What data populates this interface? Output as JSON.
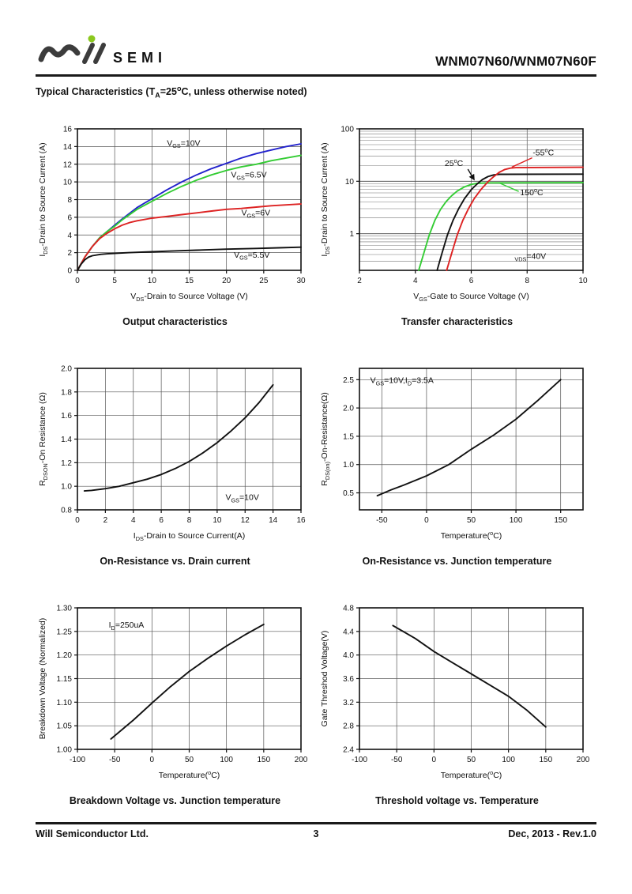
{
  "header": {
    "logo_text": "SEMI",
    "part_number": "WNM07N60/WNM07N60F",
    "logo_color": "#3c3c3c",
    "logo_dot_color": "#8bc81e"
  },
  "section_title": "Typical Characteristics (T_{A}=25^{o}C, unless otherwise noted)",
  "footer": {
    "company": "Will Semiconductor Ltd.",
    "page": "3",
    "revision": "Dec, 2013 - Rev.1.0"
  },
  "chart_data": [
    {
      "type": "line",
      "caption": "Output characteristics",
      "xlabel": "V_{DS}-Drain to Source Voltage (V)",
      "ylabel": "I_{DS}-Drain to Source Current (A)",
      "xlim": [
        0,
        30
      ],
      "ylim": [
        0,
        16
      ],
      "xticks": [
        0,
        5,
        10,
        15,
        20,
        25,
        30
      ],
      "xtick_labels": [
        "0",
        "5",
        "10",
        "15",
        "20",
        "25",
        "30"
      ],
      "yticks": [
        0,
        2,
        4,
        6,
        8,
        10,
        12,
        14,
        16
      ],
      "ytick_labels": [
        "0",
        "2",
        "4",
        "6",
        "8",
        "10",
        "12",
        "14",
        "16"
      ],
      "grid": true,
      "series": [
        {
          "name": "VGS=10V",
          "color": "#2222cc",
          "points": [
            [
              0,
              0
            ],
            [
              1,
              1.5
            ],
            [
              2,
              2.7
            ],
            [
              3,
              3.7
            ],
            [
              4,
              4.4
            ],
            [
              5,
              5.1
            ],
            [
              6,
              5.8
            ],
            [
              8,
              7.1
            ],
            [
              10,
              8.1
            ],
            [
              12,
              9.1
            ],
            [
              14,
              10.0
            ],
            [
              16,
              10.8
            ],
            [
              18,
              11.5
            ],
            [
              20,
              12.1
            ],
            [
              22,
              12.7
            ],
            [
              24,
              13.2
            ],
            [
              26,
              13.6
            ],
            [
              28,
              14.0
            ],
            [
              30,
              14.3
            ]
          ]
        },
        {
          "name": "VGS=6.5V",
          "color": "#33cc33",
          "points": [
            [
              0,
              0
            ],
            [
              1,
              1.5
            ],
            [
              2,
              2.7
            ],
            [
              3,
              3.7
            ],
            [
              4,
              4.4
            ],
            [
              5,
              5.0
            ],
            [
              6,
              5.7
            ],
            [
              8,
              6.9
            ],
            [
              10,
              7.8
            ],
            [
              12,
              8.7
            ],
            [
              14,
              9.5
            ],
            [
              16,
              10.2
            ],
            [
              18,
              10.8
            ],
            [
              20,
              11.3
            ],
            [
              22,
              11.7
            ],
            [
              24,
              12.0
            ],
            [
              26,
              12.4
            ],
            [
              28,
              12.7
            ],
            [
              30,
              13.0
            ]
          ]
        },
        {
          "name": "VGS=6V",
          "color": "#dd2222",
          "points": [
            [
              0,
              0
            ],
            [
              1,
              1.5
            ],
            [
              2,
              2.7
            ],
            [
              3,
              3.6
            ],
            [
              4,
              4.2
            ],
            [
              5,
              4.7
            ],
            [
              6,
              5.1
            ],
            [
              7,
              5.4
            ],
            [
              8,
              5.6
            ],
            [
              10,
              5.9
            ],
            [
              12,
              6.1
            ],
            [
              14,
              6.3
            ],
            [
              16,
              6.5
            ],
            [
              18,
              6.7
            ],
            [
              20,
              6.9
            ],
            [
              22,
              7.0
            ],
            [
              24,
              7.15
            ],
            [
              26,
              7.3
            ],
            [
              28,
              7.4
            ],
            [
              30,
              7.5
            ]
          ]
        },
        {
          "name": "VGS=5.5V",
          "color": "#111111",
          "points": [
            [
              0,
              0
            ],
            [
              0.5,
              0.7
            ],
            [
              1,
              1.2
            ],
            [
              1.5,
              1.5
            ],
            [
              2,
              1.65
            ],
            [
              3,
              1.8
            ],
            [
              4,
              1.87
            ],
            [
              5,
              1.92
            ],
            [
              7,
              2.0
            ],
            [
              10,
              2.1
            ],
            [
              13,
              2.2
            ],
            [
              16,
              2.28
            ],
            [
              20,
              2.4
            ],
            [
              24,
              2.48
            ],
            [
              27,
              2.55
            ],
            [
              30,
              2.62
            ]
          ]
        }
      ],
      "annotations": [
        {
          "text": "V_{GS}=10V",
          "x": 12,
          "y": 14.1,
          "anchor": "start"
        },
        {
          "text": "V_{GS}=6.5V",
          "x": 20.6,
          "y": 10.5,
          "anchor": "start"
        },
        {
          "text": "V_{GS}=6V",
          "x": 22,
          "y": 6.2,
          "anchor": "start"
        },
        {
          "text": "V_{GS}=5.5V",
          "x": 21,
          "y": 1.45,
          "anchor": "start"
        }
      ],
      "leaders": []
    },
    {
      "type": "line",
      "caption": "Transfer characteristics",
      "xlabel": "V_{GS}-Gate to Source Voltage (V)",
      "ylabel": "I_{DS}-Drain to Source Current (A)",
      "xlim": [
        2,
        10
      ],
      "ylim": [
        0.2,
        100
      ],
      "yscale": "log",
      "xticks": [
        2,
        4,
        6,
        8,
        10
      ],
      "xtick_labels": [
        "2",
        "4",
        "6",
        "8",
        "10"
      ],
      "yticks": [
        1,
        10,
        100
      ],
      "ytick_labels": [
        "1",
        "10",
        "100"
      ],
      "grid": true,
      "series": [
        {
          "name": "150°C",
          "color": "#33cc33",
          "points": [
            [
              4.12,
              0.2
            ],
            [
              4.3,
              0.42
            ],
            [
              4.5,
              0.95
            ],
            [
              4.7,
              1.8
            ],
            [
              4.9,
              2.9
            ],
            [
              5.1,
              4.1
            ],
            [
              5.3,
              5.3
            ],
            [
              5.5,
              6.5
            ],
            [
              5.75,
              7.8
            ],
            [
              6.0,
              8.7
            ],
            [
              6.2,
              9.1
            ],
            [
              6.5,
              9.3
            ],
            [
              7.0,
              9.35
            ],
            [
              10,
              9.4
            ]
          ]
        },
        {
          "name": "25°C",
          "color": "#111111",
          "points": [
            [
              4.78,
              0.2
            ],
            [
              4.95,
              0.42
            ],
            [
              5.15,
              0.95
            ],
            [
              5.35,
              1.8
            ],
            [
              5.55,
              3.0
            ],
            [
              5.75,
              4.6
            ],
            [
              6.0,
              6.9
            ],
            [
              6.2,
              8.8
            ],
            [
              6.4,
              10.8
            ],
            [
              6.6,
              12.3
            ],
            [
              6.8,
              13.2
            ],
            [
              7.0,
              13.6
            ],
            [
              10,
              13.7
            ]
          ]
        },
        {
          "name": "-55°C",
          "color": "#dd2222",
          "points": [
            [
              5.12,
              0.2
            ],
            [
              5.3,
              0.42
            ],
            [
              5.5,
              0.95
            ],
            [
              5.7,
              1.8
            ],
            [
              5.9,
              3.0
            ],
            [
              6.1,
              4.6
            ],
            [
              6.35,
              7.0
            ],
            [
              6.6,
              9.8
            ],
            [
              6.8,
              12.2
            ],
            [
              7.0,
              14.8
            ],
            [
              7.2,
              16.8
            ],
            [
              7.4,
              17.8
            ],
            [
              7.6,
              18.2
            ],
            [
              10,
              18.5
            ]
          ]
        }
      ],
      "annotations": [
        {
          "text": "25^{o}C",
          "x": 5.05,
          "y": 19.5,
          "anchor": "start"
        },
        {
          "text": "-55^{o}C",
          "x": 8.2,
          "y": 31,
          "anchor": "start"
        },
        {
          "text": "150^{o}C",
          "x": 7.75,
          "y": 5.4,
          "anchor": "start"
        },
        {
          "text": "_{VDS}=40V",
          "x": 7.55,
          "y": 0.33,
          "anchor": "start"
        }
      ],
      "leaders": [
        {
          "from": [
            8.18,
            28
          ],
          "to": [
            7.45,
            18.6
          ],
          "color": "#dd2222",
          "arrow": false
        },
        {
          "from": [
            7.0,
            9.3
          ],
          "to": [
            7.7,
            6.4
          ],
          "color": "#33cc33",
          "arrow": false
        },
        {
          "from": [
            5.88,
            17.0
          ],
          "to": [
            6.1,
            10.8
          ],
          "color": "#111111",
          "arrow": true
        }
      ]
    },
    {
      "type": "line",
      "caption": "On-Resistance vs. Drain current",
      "xlabel": "I_{DS}-Drain to Source Current(A)",
      "ylabel": "R_{DSON}-On Resistance (Ω)",
      "xlim": [
        0,
        16
      ],
      "ylim": [
        0.8,
        2.0
      ],
      "xticks": [
        0,
        2,
        4,
        6,
        8,
        10,
        12,
        14,
        16
      ],
      "xtick_labels": [
        "0",
        "2",
        "4",
        "6",
        "8",
        "10",
        "12",
        "14",
        "16"
      ],
      "yticks": [
        0.8,
        1.0,
        1.2,
        1.4,
        1.6,
        1.8,
        2.0
      ],
      "ytick_labels": [
        "0.8",
        "1.0",
        "1.2",
        "1.4",
        "1.6",
        "1.8",
        "2.0"
      ],
      "grid": true,
      "series": [
        {
          "name": "RDSON",
          "color": "#111111",
          "points": [
            [
              0.5,
              0.96
            ],
            [
              1,
              0.965
            ],
            [
              2,
              0.98
            ],
            [
              3,
              1.0
            ],
            [
              4,
              1.03
            ],
            [
              5,
              1.06
            ],
            [
              6,
              1.1
            ],
            [
              7,
              1.15
            ],
            [
              8,
              1.21
            ],
            [
              9,
              1.285
            ],
            [
              10,
              1.37
            ],
            [
              11,
              1.47
            ],
            [
              12,
              1.58
            ],
            [
              13,
              1.71
            ],
            [
              14,
              1.86
            ]
          ]
        }
      ],
      "annotations": [
        {
          "text": "V_{GS}=10V",
          "x": 10.6,
          "y": 0.885,
          "anchor": "start"
        }
      ],
      "leaders": []
    },
    {
      "type": "line",
      "caption": "On-Resistance vs. Junction temperature",
      "xlabel": "Temperature(^{o}C)",
      "ylabel": "R_{DS(on)}-On-Resistance(Ω)",
      "xlim": [
        -75,
        175
      ],
      "ylim": [
        0.2,
        2.7
      ],
      "xticks": [
        -50,
        0,
        50,
        100,
        150
      ],
      "xtick_labels": [
        "-50",
        "0",
        "50",
        "100",
        "150"
      ],
      "yticks": [
        0.5,
        1.0,
        1.5,
        2.0,
        2.5
      ],
      "ytick_labels": [
        "0.5",
        "1.0",
        "1.5",
        "2.0",
        "2.5"
      ],
      "grid": true,
      "series": [
        {
          "name": "RDS(on)",
          "color": "#111111",
          "points": [
            [
              -55,
              0.45
            ],
            [
              -40,
              0.55
            ],
            [
              -25,
              0.64
            ],
            [
              0,
              0.8
            ],
            [
              25,
              1.0
            ],
            [
              50,
              1.27
            ],
            [
              75,
              1.52
            ],
            [
              100,
              1.8
            ],
            [
              125,
              2.14
            ],
            [
              150,
              2.5
            ]
          ]
        }
      ],
      "annotations": [
        {
          "text": "V_{GS}=10V,I_{D}=3.5A",
          "x": -63,
          "y": 2.44,
          "anchor": "start"
        }
      ],
      "leaders": []
    },
    {
      "type": "line",
      "caption": "Breakdown Voltage vs. Junction temperature",
      "xlabel": "Temperature(^{o}C)",
      "ylabel": "Breakdown Voltage (Normalized)",
      "xlim": [
        -100,
        200
      ],
      "ylim": [
        1.0,
        1.3
      ],
      "xticks": [
        -100,
        -50,
        0,
        50,
        100,
        150,
        200
      ],
      "xtick_labels": [
        "-100",
        "-50",
        "0",
        "50",
        "100",
        "150",
        "200"
      ],
      "yticks": [
        1.0,
        1.05,
        1.1,
        1.15,
        1.2,
        1.25,
        1.3
      ],
      "ytick_labels": [
        "1.00",
        "1.05",
        "1.10",
        "1.15",
        "1.20",
        "1.25",
        "1.30"
      ],
      "grid": true,
      "series": [
        {
          "name": "BVDSS",
          "color": "#111111",
          "points": [
            [
              -55,
              1.022
            ],
            [
              -25,
              1.062
            ],
            [
              0,
              1.098
            ],
            [
              25,
              1.133
            ],
            [
              50,
              1.165
            ],
            [
              75,
              1.193
            ],
            [
              100,
              1.219
            ],
            [
              125,
              1.243
            ],
            [
              150,
              1.265
            ]
          ]
        }
      ],
      "annotations": [
        {
          "text": "I_{D}=250uA",
          "x": -58,
          "y": 1.258,
          "anchor": "start"
        }
      ],
      "leaders": []
    },
    {
      "type": "line",
      "caption": "Threshold voltage vs. Temperature",
      "xlabel": "Temperature(^{o}C)",
      "ylabel": "Gate Threshod Voltage(V)",
      "xlim": [
        -100,
        200
      ],
      "ylim": [
        2.4,
        4.8
      ],
      "xticks": [
        -100,
        -50,
        0,
        50,
        100,
        150,
        200
      ],
      "xtick_labels": [
        "-100",
        "-50",
        "0",
        "50",
        "100",
        "150",
        "200"
      ],
      "yticks": [
        2.4,
        2.8,
        3.2,
        3.6,
        4.0,
        4.4,
        4.8
      ],
      "ytick_labels": [
        "2.4",
        "2.8",
        "3.2",
        "3.6",
        "4.0",
        "4.4",
        "4.8"
      ],
      "grid": true,
      "series": [
        {
          "name": "VGS(th)",
          "color": "#111111",
          "points": [
            [
              -55,
              4.5
            ],
            [
              -25,
              4.28
            ],
            [
              0,
              4.06
            ],
            [
              25,
              3.87
            ],
            [
              50,
              3.68
            ],
            [
              75,
              3.49
            ],
            [
              100,
              3.3
            ],
            [
              125,
              3.06
            ],
            [
              150,
              2.78
            ]
          ]
        }
      ],
      "annotations": [],
      "leaders": []
    }
  ]
}
